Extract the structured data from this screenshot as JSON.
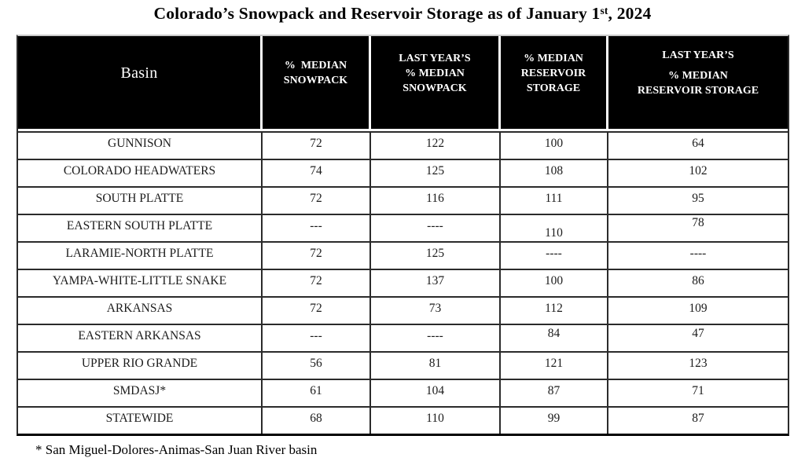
{
  "page": {
    "title": {
      "prefix": "Colorado’s Snowpack and Reservoir Storage as of January 1",
      "superscript": "st",
      "suffix": ", 2024"
    },
    "footnote": "* San Miguel-Dolores-Animas-San Juan River basin"
  },
  "table": {
    "columns": [
      {
        "id": "basin",
        "lines": [
          "Basin"
        ]
      },
      {
        "id": "pct-median-snowpack",
        "lines": [
          "%  MEDIAN",
          "SNOWPACK"
        ]
      },
      {
        "id": "last-years-pct-median-snowpack",
        "lines": [
          "LAST YEAR’S",
          "% MEDIAN",
          "SNOWPACK"
        ]
      },
      {
        "id": "pct-median-reservoir-storage",
        "lines": [
          "% MEDIAN",
          "RESERVOIR",
          "STORAGE"
        ]
      },
      {
        "id": "last-years-pct-median-reservoir-storage",
        "lines": [
          "LAST YEAR’S",
          "% MEDIAN",
          "RESERVOIR STORAGE"
        ]
      }
    ],
    "rows": [
      {
        "basin": "GUNNISON",
        "values": [
          "72",
          "122",
          "100",
          "64"
        ]
      },
      {
        "basin": "COLORADO HEADWATERS",
        "values": [
          "74",
          "125",
          "108",
          "102"
        ]
      },
      {
        "basin": "SOUTH PLATTE",
        "values": [
          "72",
          "116",
          "111",
          "95"
        ]
      },
      {
        "basin": "EASTERN SOUTH PLATTE",
        "values": [
          "---",
          "----",
          "110",
          "78"
        ]
      },
      {
        "basin": "LARAMIE-NORTH PLATTE",
        "values": [
          "72",
          "125",
          "----",
          "----"
        ]
      },
      {
        "basin": "YAMPA-WHITE-LITTLE SNAKE",
        "values": [
          "72",
          "137",
          "100",
          "86"
        ]
      },
      {
        "basin": "ARKANSAS",
        "values": [
          "72",
          "73",
          "112",
          "109"
        ]
      },
      {
        "basin": "EASTERN ARKANSAS",
        "values": [
          "---",
          "----",
          "84",
          "47"
        ]
      },
      {
        "basin": "UPPER RIO GRANDE",
        "values": [
          "56",
          "81",
          "121",
          "123"
        ]
      },
      {
        "basin": "SMDASJ*",
        "values": [
          "61",
          "104",
          "87",
          "71"
        ]
      },
      {
        "basin": "STATEWIDE",
        "values": [
          "68",
          "110",
          "99",
          "87"
        ]
      }
    ]
  },
  "colors": {
    "header_bg": "#000000",
    "header_text": "#ffffff",
    "border_outer": "#000000",
    "border_inner": "#2b2b2b",
    "body_text": "#1c1c1c",
    "page_bg": "#ffffff"
  }
}
